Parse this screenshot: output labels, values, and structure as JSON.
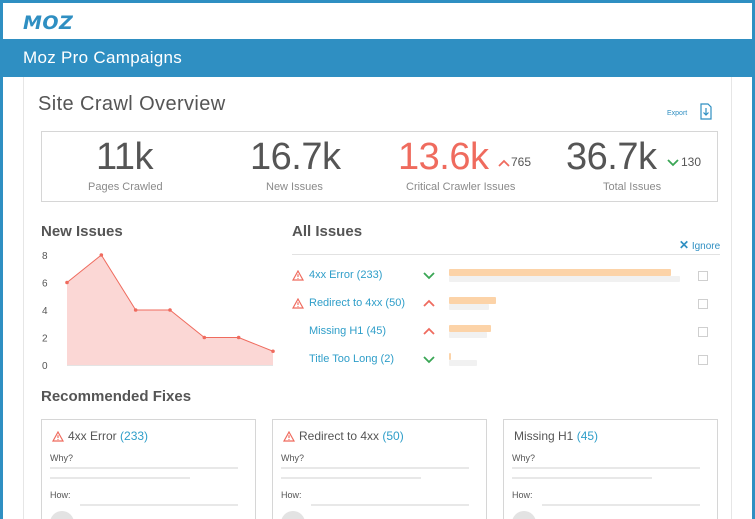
{
  "brand": {
    "logo": "MOZ",
    "color": "#2f8fc2"
  },
  "header": {
    "title": "Moz Pro Campaigns"
  },
  "page": {
    "title": "Site Crawl Overview",
    "export_label": "Export",
    "export_icon": "export-icon"
  },
  "metrics": [
    {
      "value": "11k",
      "label": "Pages Crawled",
      "color": "#555555"
    },
    {
      "value": "16.7k",
      "label": "New Issues",
      "color": "#555555"
    },
    {
      "value": "13.6k",
      "label": "Critical Crawler Issues",
      "color": "#ef6b5e",
      "delta": "765",
      "delta_dir": "up"
    },
    {
      "value": "36.7k",
      "label": "Total Issues",
      "color": "#555555",
      "delta": "130",
      "delta_dir": "down"
    }
  ],
  "new_issues": {
    "title": "New Issues"
  },
  "chart_data": {
    "type": "area",
    "title": "New Issues",
    "x": [
      1,
      2,
      3,
      4,
      5,
      6,
      7
    ],
    "values": [
      6,
      8,
      4,
      4,
      2,
      2,
      1
    ],
    "ylim": [
      0,
      8
    ],
    "yticks": [
      "8",
      "6",
      "4",
      "2",
      "0"
    ],
    "color_fill": "#fbd7d5",
    "color_line": "#ef6b5e"
  },
  "all_issues": {
    "title": "All Issues",
    "ignore_label": "Ignore",
    "rows": [
      {
        "label": "4xx Error (233)",
        "warn": true,
        "trend": "down",
        "fill": 0.94,
        "bg": 0.98
      },
      {
        "label": "Redirect to 4xx (50)",
        "warn": true,
        "trend": "up",
        "fill": 0.2,
        "bg": 0.17
      },
      {
        "label": "Missing H1 (45)",
        "warn": false,
        "trend": "up",
        "fill": 0.18,
        "bg": 0.16
      },
      {
        "label": "Title Too Long (2)",
        "warn": false,
        "trend": "down",
        "fill": 0.01,
        "bg": 0.12
      }
    ]
  },
  "fixes": {
    "title": "Recommended Fixes",
    "cards": [
      {
        "name": "4xx Error",
        "count": "(233)",
        "warn": true,
        "why": "Why?",
        "how": "How:"
      },
      {
        "name": "Redirect to 4xx",
        "count": "(50)",
        "warn": true,
        "why": "Why?",
        "how": "How:"
      },
      {
        "name": "Missing H1",
        "count": "(45)",
        "warn": false,
        "why": "Why?",
        "how": "How:"
      }
    ]
  }
}
